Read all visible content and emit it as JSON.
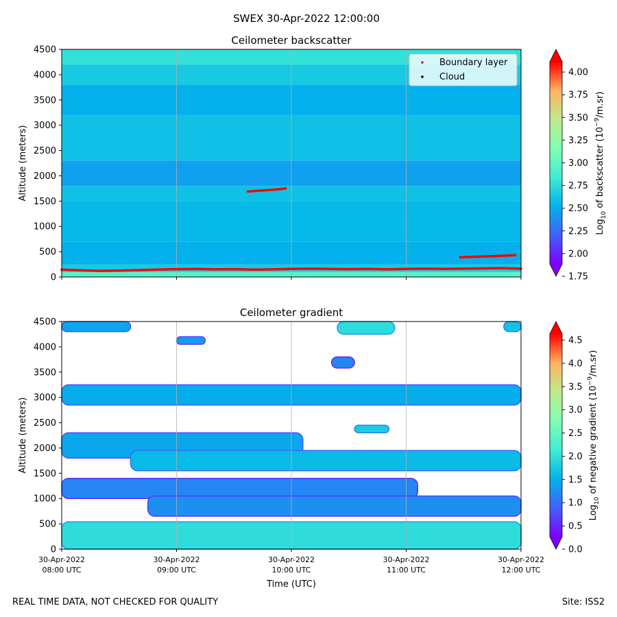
{
  "suptitle": "SWEX 30-Apr-2022 12:00:00",
  "footer_left": "REAL TIME DATA, NOT CHECKED FOR QUALITY",
  "footer_right": "Site: ISS2",
  "colors": {
    "cmap": [
      "#8000ff",
      "#4062fa",
      "#01b3eb",
      "#40ecd4",
      "#81feb4",
      "#c0eb8d",
      "#ffb360",
      "#ff0000"
    ],
    "boundary_layer": "#ff0000",
    "cloud": "#000000",
    "gridline": "#b0b0b0"
  },
  "chart_data": [
    {
      "type": "heatmap",
      "title": "Ceilometer backscatter",
      "ylabel": "Altitude (meters)",
      "xlabel": "",
      "ylim": [
        0,
        4500
      ],
      "xlim_hours": [
        8,
        12
      ],
      "yticks": [
        "0",
        "500",
        "1000",
        "1500",
        "2000",
        "2500",
        "3000",
        "3500",
        "4000",
        "4500"
      ],
      "x_gridlines_hours": [
        9,
        10,
        11
      ],
      "colorbar": {
        "label_main": "Log",
        "label_sub": "10",
        "label_rest": " of backscatter (10",
        "label_sup": "−9",
        "label_end": "/m.sr)",
        "range": [
          1.75,
          4.25
        ],
        "ticks": [
          "1.75",
          "2.00",
          "2.25",
          "2.50",
          "2.75",
          "3.00",
          "3.25",
          "3.50",
          "3.75",
          "4.00"
        ]
      },
      "legend": {
        "position": "top-right",
        "entries": [
          {
            "label": "Boundary layer",
            "marker": "dot",
            "color": "#ff0000"
          },
          {
            "label": "Cloud",
            "marker": "dot",
            "color": "#000000"
          }
        ]
      },
      "field_layers": [
        {
          "alt_from": 0,
          "alt_to": 100,
          "value": 2.95
        },
        {
          "alt_from": 100,
          "alt_to": 250,
          "value": 2.6
        },
        {
          "alt_from": 250,
          "alt_to": 700,
          "value": 2.45
        },
        {
          "alt_from": 700,
          "alt_to": 1500,
          "value": 2.5
        },
        {
          "alt_from": 1500,
          "alt_to": 1800,
          "value": 2.55
        },
        {
          "alt_from": 1800,
          "alt_to": 2300,
          "value": 2.38
        },
        {
          "alt_from": 2300,
          "alt_to": 3200,
          "value": 2.55
        },
        {
          "alt_from": 3200,
          "alt_to": 3800,
          "value": 2.45
        },
        {
          "alt_from": 3800,
          "alt_to": 4200,
          "value": 2.6
        },
        {
          "alt_from": 4200,
          "alt_to": 4500,
          "value": 2.75
        }
      ],
      "boundary_layer_series": [
        {
          "name": "lower boundary layer",
          "time_hours": [
            8.0,
            8.17,
            8.33,
            8.5,
            8.67,
            8.83,
            9.0,
            9.17,
            9.33,
            9.5,
            9.67,
            9.83,
            10.0,
            10.17,
            10.33,
            10.5,
            10.67,
            10.83,
            11.0,
            11.17,
            11.33,
            11.5,
            11.67,
            11.83,
            12.0
          ],
          "altitude_m": [
            145,
            130,
            120,
            125,
            135,
            145,
            155,
            160,
            150,
            155,
            145,
            150,
            160,
            165,
            160,
            155,
            160,
            150,
            160,
            165,
            160,
            165,
            170,
            175,
            165
          ]
        },
        {
          "name": "boundary layer segment 1",
          "time_hours": [
            9.62,
            9.75,
            9.87,
            9.95
          ],
          "altitude_m": [
            1690,
            1710,
            1730,
            1750
          ]
        },
        {
          "name": "boundary layer segment 2",
          "time_hours": [
            11.47,
            11.6,
            11.75,
            11.95
          ],
          "altitude_m": [
            390,
            400,
            410,
            430
          ]
        }
      ]
    },
    {
      "type": "heatmap",
      "title": "Ceilometer gradient",
      "ylabel": "Altitude (meters)",
      "xlabel": "Time (UTC)",
      "ylim": [
        0,
        4500
      ],
      "xlim_hours": [
        8,
        12
      ],
      "yticks": [
        "0",
        "500",
        "1000",
        "1500",
        "2000",
        "2500",
        "3000",
        "3500",
        "4000",
        "4500"
      ],
      "xticks": [
        {
          "hour": 8,
          "line1": "30-Apr-2022",
          "line2": "08:00 UTC"
        },
        {
          "hour": 9,
          "line1": "30-Apr-2022",
          "line2": "09:00 UTC"
        },
        {
          "hour": 10,
          "line1": "30-Apr-2022",
          "line2": "10:00 UTC"
        },
        {
          "hour": 11,
          "line1": "30-Apr-2022",
          "line2": "11:00 UTC"
        },
        {
          "hour": 12,
          "line1": "30-Apr-2022",
          "line2": "12:00 UTC"
        }
      ],
      "x_gridlines_hours": [
        9,
        10,
        11
      ],
      "colorbar": {
        "label_main": "Log",
        "label_sub": "10",
        "label_rest": " of negative gradient (10",
        "label_sup": "−9",
        "label_end": "/m.sr)",
        "range": [
          0,
          4.9
        ],
        "ticks": [
          "0.0",
          "0.5",
          "1.0",
          "1.5",
          "2.0",
          "2.5",
          "3.0",
          "3.5",
          "4.0",
          "4.5"
        ]
      },
      "gradient_layers": [
        {
          "t_start": 8.0,
          "t_end": 12.0,
          "alt_bottom": 0,
          "alt_top": 540,
          "value": 1.9
        },
        {
          "t_start": 8.0,
          "t_end": 12.0,
          "alt_bottom": 2850,
          "alt_top": 3250,
          "value": 1.35
        },
        {
          "t_start": 8.0,
          "t_end": 10.1,
          "alt_bottom": 1800,
          "alt_top": 2300,
          "value": 1.3
        },
        {
          "t_start": 8.6,
          "t_end": 12.0,
          "alt_bottom": 1550,
          "alt_top": 1950,
          "value": 1.5
        },
        {
          "t_start": 8.0,
          "t_end": 11.1,
          "alt_bottom": 1000,
          "alt_top": 1400,
          "value": 1.0
        },
        {
          "t_start": 8.75,
          "t_end": 12.0,
          "alt_bottom": 650,
          "alt_top": 1050,
          "value": 1.1
        },
        {
          "t_start": 8.0,
          "t_end": 8.6,
          "alt_bottom": 4300,
          "alt_top": 4500,
          "value": 1.3
        },
        {
          "t_start": 10.4,
          "t_end": 10.9,
          "alt_bottom": 4250,
          "alt_top": 4500,
          "value": 1.9
        },
        {
          "t_start": 9.0,
          "t_end": 9.25,
          "alt_bottom": 4050,
          "alt_top": 4200,
          "value": 1.2
        },
        {
          "t_start": 10.35,
          "t_end": 10.55,
          "alt_bottom": 3580,
          "alt_top": 3800,
          "value": 1.0
        },
        {
          "t_start": 10.55,
          "t_end": 10.85,
          "alt_bottom": 2300,
          "alt_top": 2450,
          "value": 1.7
        },
        {
          "t_start": 11.85,
          "t_end": 12.0,
          "alt_bottom": 4300,
          "alt_top": 4500,
          "value": 1.6
        }
      ]
    }
  ]
}
